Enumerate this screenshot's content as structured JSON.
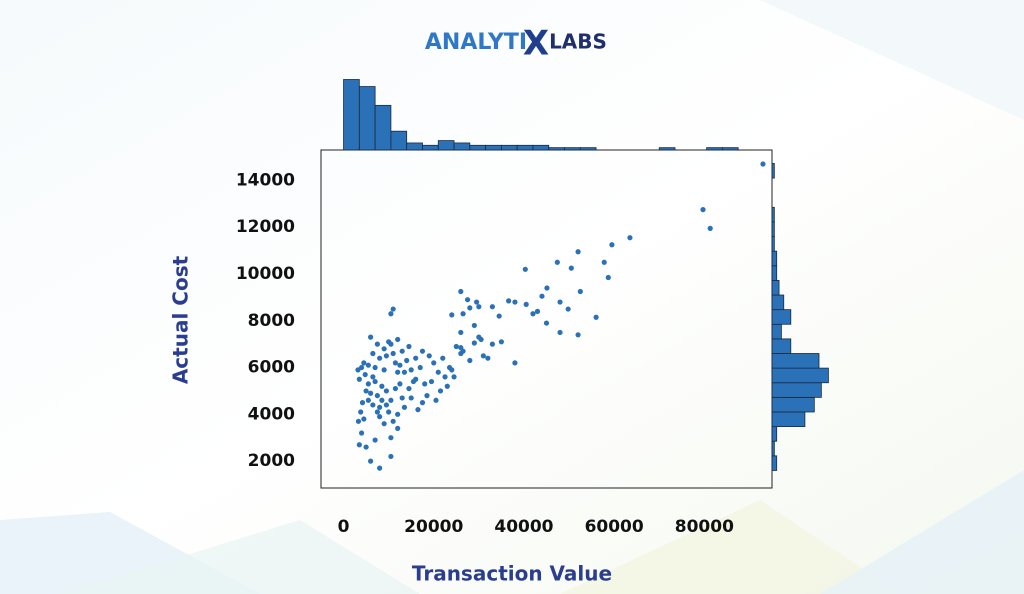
{
  "logo": {
    "left": "ANALYTI",
    "mark": "X",
    "right": "LABS"
  },
  "chart_data": [
    {
      "type": "scatter",
      "color": "#2a71b8",
      "xlabel": "Transaction Value",
      "ylabel": "Actual Cost",
      "xlim": [
        -5000,
        95000
      ],
      "ylim": [
        850,
        15300
      ],
      "xticks": [
        0,
        20000,
        40000,
        60000,
        80000
      ],
      "yticks": [
        2000,
        4000,
        6000,
        8000,
        10000,
        12000,
        14000
      ],
      "grid": false,
      "x": [
        93000,
        79700,
        81300,
        63500,
        59500,
        52000,
        57800,
        47400,
        50500,
        58700,
        40300,
        45100,
        44000,
        52500,
        48000,
        49800,
        56000,
        42000,
        38000,
        36600,
        33000,
        34500,
        26000,
        27500,
        28000,
        29500,
        30000,
        26500,
        24000,
        29000,
        26000,
        30500,
        33000,
        35000,
        29000,
        26000,
        31000,
        32000,
        28000,
        38000,
        45000,
        48000,
        52000,
        43000,
        40500,
        26500,
        30000,
        3500,
        4000,
        5000,
        6000,
        7000,
        8000,
        10500,
        3300,
        3800,
        4200,
        4500,
        5000,
        3500,
        3200,
        4000,
        4800,
        5500,
        6000,
        6500,
        7000,
        7500,
        8000,
        8500,
        9000,
        9500,
        10000,
        10500,
        11000,
        10500,
        11500,
        12000,
        12500,
        13000,
        13500,
        12000,
        11000,
        10000,
        9000,
        8000,
        7500,
        6500,
        6000,
        5500,
        7000,
        8000,
        9000,
        11000,
        12500,
        13500,
        14000,
        15000,
        16000,
        17000,
        18000,
        19000,
        20000,
        21000,
        22000,
        23500,
        24500,
        26000,
        25000,
        21500,
        20500,
        18500,
        17500,
        16500,
        15000,
        14500,
        15500,
        16000,
        17500,
        19500,
        22500,
        23000,
        24000,
        13000,
        12000,
        14500,
        7500,
        9500,
        10500,
        11500,
        6500,
        4500,
        5500,
        8500,
        9500,
        12000,
        10500
      ],
      "values": [
        14700,
        12750,
        11950,
        11550,
        11250,
        10950,
        10500,
        10500,
        10250,
        9850,
        10200,
        9400,
        9050,
        9250,
        8800,
        8500,
        8150,
        8300,
        8800,
        8850,
        8600,
        8200,
        9250,
        8900,
        8550,
        8800,
        8600,
        8300,
        8250,
        7800,
        7500,
        7200,
        7000,
        7100,
        7050,
        6850,
        6500,
        6400,
        6300,
        6200,
        7900,
        7500,
        7400,
        8400,
        8700,
        6700,
        7300,
        2700,
        3200,
        2600,
        2000,
        2900,
        1700,
        2200,
        3700,
        4100,
        4500,
        3800,
        5000,
        5500,
        5900,
        6000,
        5700,
        6100,
        7300,
        6600,
        5400,
        4800,
        4300,
        5200,
        5900,
        6500,
        7100,
        8300,
        8500,
        7000,
        6200,
        5800,
        5300,
        4700,
        4300,
        4000,
        3700,
        4100,
        3600,
        3900,
        4100,
        4400,
        4900,
        5300,
        6000,
        6400,
        6800,
        6600,
        6100,
        5800,
        6300,
        5900,
        5500,
        6000,
        5300,
        6500,
        6200,
        5800,
        6400,
        6000,
        5600,
        6600,
        6900,
        5000,
        4600,
        4800,
        4500,
        4200,
        4700,
        5100,
        5400,
        6400,
        6700,
        5400,
        5600,
        5200,
        5900,
        6700,
        7200,
        6900,
        7000,
        5000,
        4600,
        5100,
        5600,
        6200,
        4600,
        4600,
        4400,
        3400,
        3000
      ]
    },
    {
      "type": "histogram",
      "orientation": "vertical",
      "color": "#2a71b8",
      "bins": [
        0,
        3500,
        7000,
        10500,
        14000,
        17500,
        21000,
        24500,
        28000,
        31500,
        35000,
        38500,
        42000,
        45500,
        49000,
        52500,
        56000,
        59500,
        63000,
        66500,
        70000,
        73500,
        77000,
        80500,
        84000,
        87500
      ],
      "counts": [
        30,
        27,
        19,
        8,
        3,
        2,
        4,
        3,
        2,
        2,
        2,
        2,
        2,
        1,
        1,
        1,
        0,
        0,
        0,
        0,
        1,
        0,
        0,
        1,
        1
      ]
    },
    {
      "type": "histogram",
      "orientation": "horizontal",
      "color": "#2a71b8",
      "bins": [
        1600,
        2225,
        2850,
        3475,
        4100,
        4725,
        5350,
        5975,
        6600,
        7225,
        7850,
        8475,
        9100,
        9725,
        10350,
        10975,
        11600,
        12225,
        12850,
        13475,
        14100,
        14725
      ],
      "counts": [
        2,
        1,
        2,
        14,
        18,
        21,
        24,
        20,
        8,
        4,
        8,
        5,
        3,
        2,
        2,
        1,
        1,
        1,
        0,
        0,
        1
      ]
    }
  ]
}
